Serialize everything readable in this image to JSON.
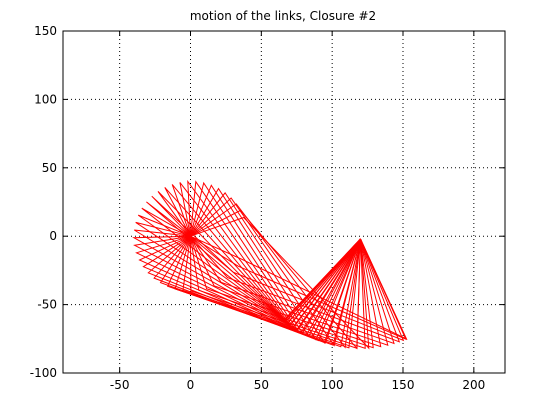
{
  "chart_data": {
    "type": "line",
    "title": "motion of the links, Closure #2",
    "xlabel": "",
    "ylabel": "",
    "xlim": [
      -90,
      222
    ],
    "ylim": [
      -100,
      150
    ],
    "xticks": [
      -50,
      0,
      50,
      100,
      150,
      200
    ],
    "yticks": [
      -100,
      -50,
      0,
      50,
      100,
      150
    ],
    "grid": true,
    "grid_style": "dotted",
    "line_color": "#ff0000",
    "linkage": {
      "fixed_pivot_A": [
        0,
        0
      ],
      "fixed_pivot_D": [
        120,
        -2
      ],
      "link_AB_length": 40,
      "link_BC_length": 130,
      "link_CD_length": 80,
      "input_angle_start_deg": 20,
      "input_angle_end_deg": 335,
      "positions": 40
    }
  }
}
